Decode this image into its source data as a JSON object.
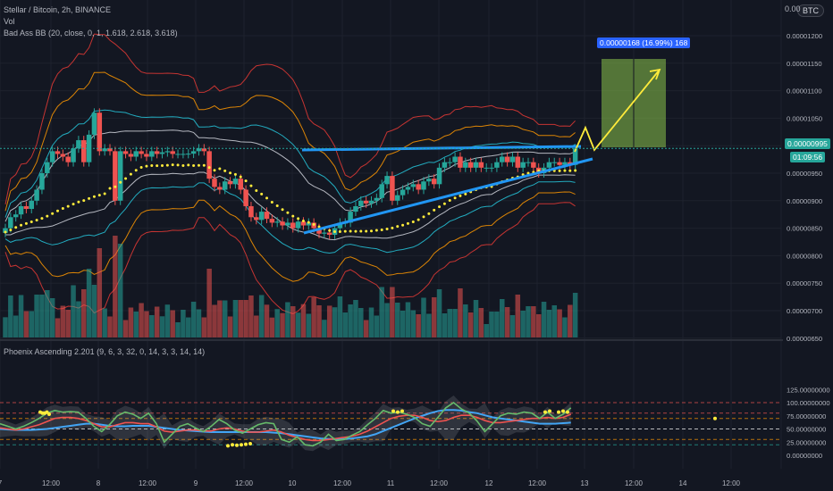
{
  "header": {
    "symbol_line": "Stellar / Bitcoin, 2h, BINANCE",
    "vol_label": "Vol",
    "bb_label": "Bad Ass BB (20, close, 0, 1, 1.618, 2.618, 3.618)",
    "osc_label": "Phoenix Ascending 2.201 (9, 6, 3, 32, 0, 14, 3, 3, 14, 14)",
    "currency_badge": "BTC",
    "top_cut_label": "0.00"
  },
  "price_tag": {
    "value": "0.00000995",
    "countdown": "01:09:56"
  },
  "target_box": {
    "label": "0.00000168 (16.99%) 168"
  },
  "colors": {
    "background": "#131722",
    "up": "#26a69a",
    "down": "#ef5350",
    "trendline": "#2196f3",
    "dots": "#ffeb3b",
    "target_fill": "#8bc34a",
    "tag_blue": "#2962ff",
    "tag_green": "#26a69a",
    "bb_white": "#d1d4dc",
    "bb_cyan": "#26c6da",
    "bb_orange": "#ff9800",
    "bb_red": "#e53935"
  },
  "chart_data": {
    "type": "candlestick",
    "price_axis": [
      "0.00001200",
      "0.00001150",
      "0.00001100",
      "0.00001050",
      "0.00001000",
      "0.00000950",
      "0.00000900",
      "0.00000850",
      "0.00000800",
      "0.00000750",
      "0.00000700",
      "0.00000650"
    ],
    "osc_axis": [
      "125.00000000",
      "100.00000000",
      "75.00000000",
      "50.00000000",
      "25.00000000",
      "0.00000000"
    ],
    "x_ticks": [
      "7",
      "12:00",
      "8",
      "12:00",
      "9",
      "12:00",
      "10",
      "12:00",
      "11",
      "12:00",
      "12",
      "12:00",
      "13",
      "12:00",
      "14",
      "12:00"
    ],
    "close": [
      8.5e-06,
      8.7e-06,
      8.75e-06,
      8.9e-06,
      8.85e-06,
      9e-06,
      9.2e-06,
      9.5e-06,
      9.7e-06,
      9.9e-06,
      9.85e-06,
      9.8e-06,
      9.7e-06,
      9.95e-06,
      1.01e-05,
      9.7e-06,
      1.02e-05,
      1.06e-05,
      9.9e-06,
      9.95e-06,
      9.9e-06,
      9e-06,
      9.9e-06,
      9.85e-06,
      9.8e-06,
      9.9e-06,
      9.85e-06,
      9.8e-06,
      9.9e-06,
      9.85e-06,
      9.88e-06,
      9.9e-06,
      9.85e-06,
      9.85e-06,
      9.85e-06,
      9.855e-06,
      9.9e-06,
      9.95e-06,
      9.9e-06,
      9.4e-06,
      9.25e-06,
      9.2e-06,
      9.35e-06,
      9.3e-06,
      9.4e-06,
      9.2e-06,
      8.9e-06,
      8.7e-06,
      8.65e-06,
      8.8e-06,
      8.67e-06,
      8.6e-06,
      8.62e-06,
      8.55e-06,
      8.6e-06,
      8.5e-06,
      8.62e-06,
      8.55e-06,
      8.6e-06,
      8.5e-06,
      8.4e-06,
      8.42e-06,
      8.38e-06,
      8.5e-06,
      8.6e-06,
      8.6e-06,
      8.8e-06,
      8.9e-06,
      9e-06,
      8.95e-06,
      9e-06,
      9.05e-06,
      9.3e-06,
      9.45e-06,
      9e-06,
      9.1e-06,
      9.2e-06,
      9.25e-06,
      9.3e-06,
      9.2e-06,
      9.35e-06,
      9.4e-06,
      9.3e-06,
      9.6e-06,
      9.7e-06,
      9.7e-06,
      9.8e-06,
      9.6e-06,
      9.7e-06,
      9.6e-06,
      9.7e-06,
      9.6e-06,
      9.6e-06,
      9.6e-06,
      9.7e-06,
      9.8e-06,
      9.7e-06,
      9.8e-06,
      9.6e-06,
      9.7e-06,
      9.7e-06,
      9.6e-06,
      9.5e-06,
      9.6e-06,
      9.7e-06,
      9.7e-06,
      9.65e-06,
      9.7e-06,
      9.65e-06,
      9.95e-06
    ],
    "osc_fast": [
      60,
      55,
      50,
      55,
      62,
      70,
      80,
      85,
      82,
      83,
      82,
      70,
      55,
      45,
      58,
      75,
      82,
      78,
      70,
      80,
      60,
      25,
      40,
      55,
      60,
      52,
      45,
      55,
      68,
      60,
      48,
      42,
      50,
      58,
      62,
      60,
      30,
      25,
      35,
      20,
      18,
      25,
      40,
      28,
      30,
      38,
      45,
      58,
      70,
      85,
      80,
      82,
      78,
      72,
      60,
      55,
      72,
      90,
      100,
      88,
      80,
      65,
      45,
      60,
      75,
      80,
      78,
      82,
      80,
      70,
      82,
      70,
      78,
      90
    ],
    "osc_mid": [
      52,
      50,
      48,
      50,
      54,
      58,
      64,
      70,
      72,
      72,
      70,
      66,
      60,
      54,
      54,
      58,
      62,
      62,
      60,
      60,
      54,
      46,
      44,
      46,
      48,
      48,
      46,
      46,
      50,
      52,
      50,
      46,
      44,
      44,
      46,
      48,
      44,
      38,
      34,
      30,
      28,
      28,
      30,
      32,
      34,
      36,
      40,
      46,
      54,
      62,
      70,
      74,
      76,
      76,
      72,
      66,
      64,
      66,
      72,
      76,
      76,
      72,
      66,
      62,
      62,
      64,
      66,
      68,
      70,
      70,
      72,
      70,
      72,
      78
    ],
    "osc_slow": [
      50,
      49,
      48,
      48,
      48,
      49,
      50,
      52,
      54,
      56,
      58,
      60,
      60,
      58,
      56,
      55,
      55,
      56,
      56,
      56,
      54,
      52,
      50,
      48,
      47,
      46,
      45,
      44,
      44,
      44,
      44,
      44,
      44,
      44,
      44,
      43,
      42,
      40,
      38,
      36,
      34,
      32,
      31,
      31,
      31,
      32,
      34,
      36,
      40,
      46,
      52,
      58,
      64,
      70,
      75,
      80,
      84,
      86,
      86,
      85,
      82,
      80,
      76,
      72,
      70,
      68,
      66,
      64,
      62,
      60,
      60,
      60,
      61,
      62
    ],
    "osc_dots": [
      [
        18,
        82
      ],
      [
        19,
        80
      ],
      [
        20,
        80
      ],
      [
        21,
        82
      ],
      [
        22,
        78
      ],
      [
        102,
        18
      ],
      [
        104,
        20
      ],
      [
        106,
        19
      ],
      [
        108,
        20
      ],
      [
        110,
        21
      ],
      [
        112,
        22
      ],
      [
        176,
        84
      ],
      [
        178,
        82
      ],
      [
        180,
        84
      ],
      [
        244,
        82
      ],
      [
        246,
        84
      ],
      [
        250,
        82
      ],
      [
        252,
        84
      ],
      [
        254,
        82
      ],
      [
        320,
        70
      ]
    ]
  }
}
